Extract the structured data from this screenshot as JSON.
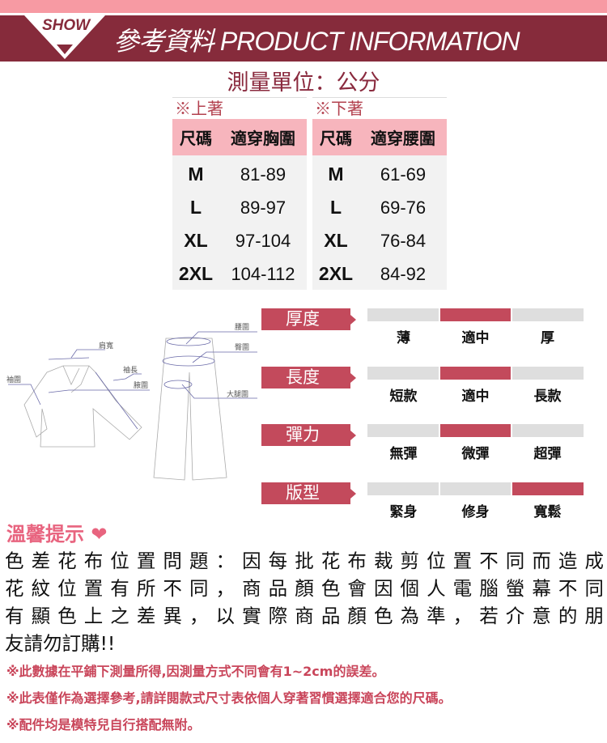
{
  "header": {
    "badge": "SHOW",
    "title": "參考資料 PRODUCT INFORMATION"
  },
  "unit": "測量單位：公分",
  "tables": [
    {
      "label": "※上著",
      "headers": [
        "尺碼",
        "適穿胸圍"
      ],
      "rows": [
        [
          "M",
          "81-89"
        ],
        [
          "L",
          "89-97"
        ],
        [
          "XL",
          "97-104"
        ],
        [
          "2XL",
          "104-112"
        ]
      ]
    },
    {
      "label": "※下著",
      "headers": [
        "尺碼",
        "適穿腰圍"
      ],
      "rows": [
        [
          "M",
          "61-69"
        ],
        [
          "L",
          "69-76"
        ],
        [
          "XL",
          "76-84"
        ],
        [
          "2XL",
          "84-92"
        ]
      ]
    }
  ],
  "diagram": {
    "labels": [
      "肩寬",
      "袖圍",
      "袖長",
      "腋圍",
      "腰圍",
      "臀圍",
      "大腿圍"
    ]
  },
  "attributes": [
    {
      "label": "厚度",
      "options": [
        "薄",
        "適中",
        "厚"
      ],
      "selected": 1
    },
    {
      "label": "長度",
      "options": [
        "短款",
        "適中",
        "長款"
      ],
      "selected": 1
    },
    {
      "label": "彈力",
      "options": [
        "無彈",
        "微彈",
        "超彈"
      ],
      "selected": 1
    },
    {
      "label": "版型",
      "options": [
        "緊身",
        "修身",
        "寬鬆"
      ],
      "selected": 2
    }
  ],
  "colors": {
    "accent": "#c34a5c",
    "band": "#862b3b",
    "pink": "#f79aa3"
  },
  "tips": {
    "title": "溫馨提示",
    "icon": "heart-icon",
    "lines": [
      "色差花布位置問題：因每批花布裁剪位置不同而造成",
      "花紋位置有所不同，商品顏色會因個人電腦螢幕不同",
      "有顯色上之差異，以實際商品顏色為準，若介意的朋",
      "友請勿訂購!!"
    ],
    "notes": [
      "※此數據在平鋪下測量所得,因測量方式不同會有1~2cm的誤差。",
      "※此表僅作為選擇參考,請詳閱款式尺寸表依個人穿著習慣選擇適合您的尺碼。",
      "※配件均是模特兒自行搭配無附。"
    ]
  }
}
